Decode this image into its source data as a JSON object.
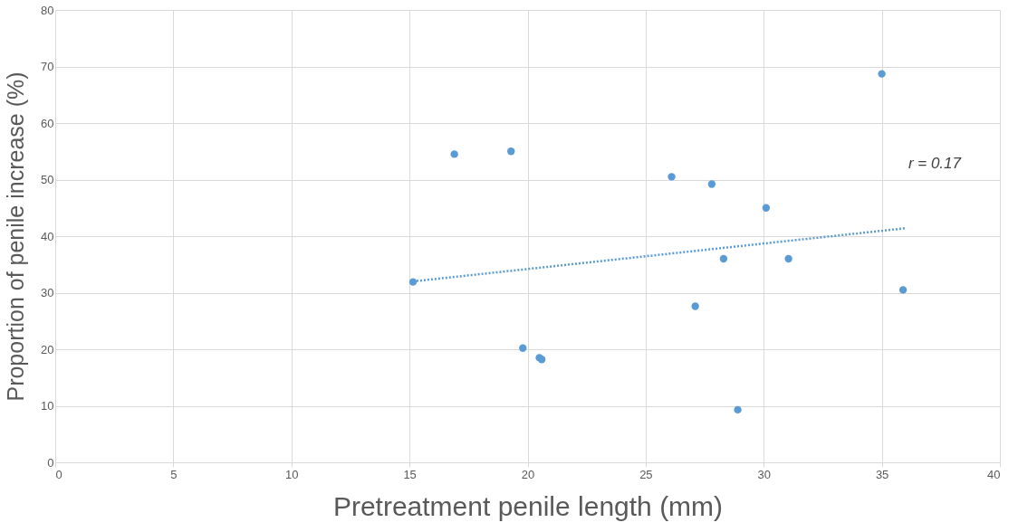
{
  "chart_data": {
    "type": "scatter",
    "xlabel": "Pretreatment penile length (mm)",
    "ylabel": "Proportion of penile increase (%)",
    "xlim": [
      0,
      40
    ],
    "xticks": [
      0,
      5,
      10,
      15,
      20,
      25,
      30,
      35,
      40
    ],
    "ylim": [
      0,
      80
    ],
    "yticks": [
      0,
      10,
      20,
      30,
      40,
      50,
      60,
      70,
      80
    ],
    "grid": true,
    "series": [
      {
        "color": "#5b9bd5",
        "marker": "circle",
        "x": [
          15.15,
          16.9,
          19.3,
          19.8,
          20.5,
          20.6,
          26.1,
          27.8,
          27.1,
          28.3,
          28.9,
          30.1,
          31.05,
          35.0,
          35.9
        ],
        "values": [
          31.9,
          54.5,
          55.0,
          20.2,
          18.5,
          18.2,
          50.5,
          49.2,
          27.6,
          36.0,
          9.3,
          45.0,
          36.0,
          68.7,
          30.5
        ]
      },
      {
        "type": "line",
        "color": "#5b9bd5",
        "line_style": "dotted",
        "x": [
          15.15,
          36.0
        ],
        "values": [
          32.0,
          41.4
        ]
      }
    ],
    "annotations": [
      "r = 0.17"
    ]
  }
}
